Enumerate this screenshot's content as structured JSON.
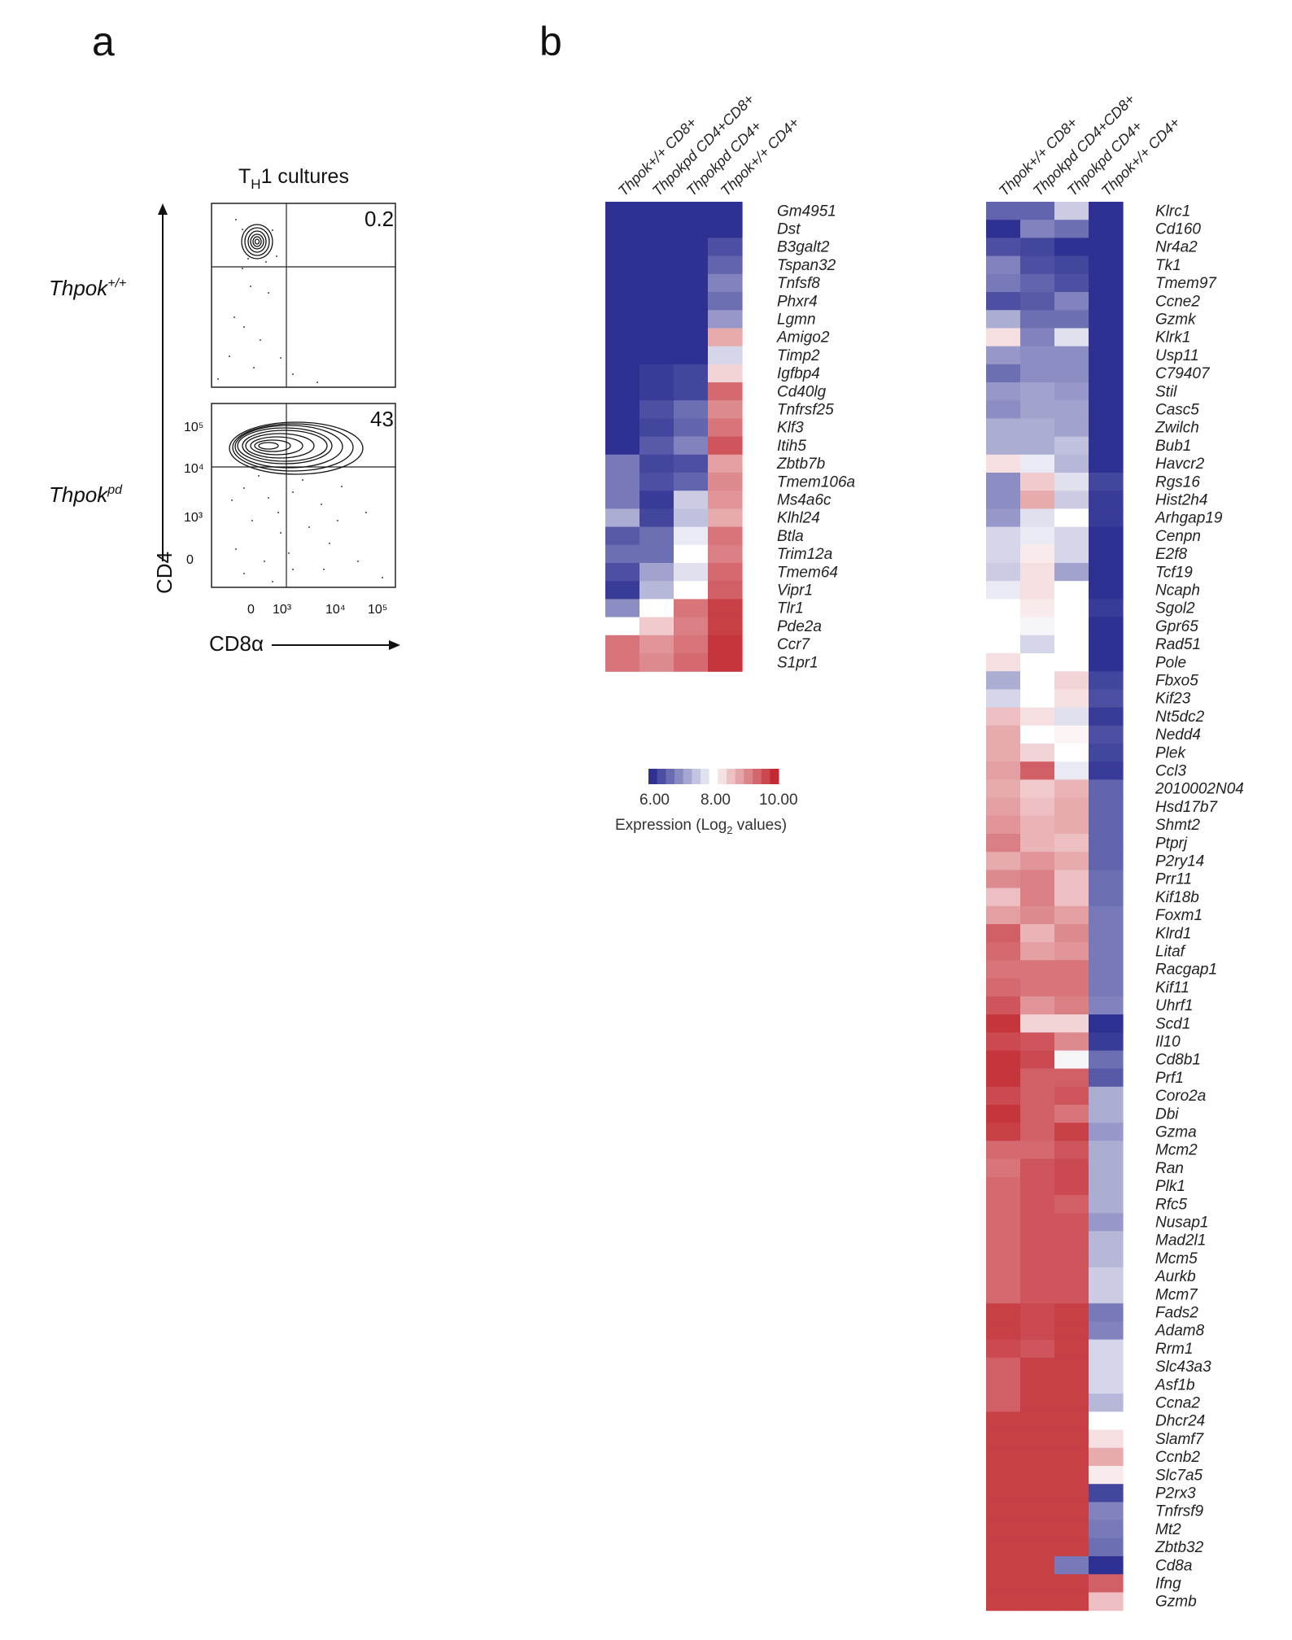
{
  "panels": {
    "a": {
      "letter": "a"
    },
    "b": {
      "letter": "b"
    }
  },
  "flow": {
    "title": "TH1 cultures",
    "title_parts": {
      "main": "T",
      "sub": "H",
      "rest": "1 cultures"
    },
    "rows": [
      {
        "genotype": "Thpok+/+",
        "genotype_base": "Thpok",
        "genotype_sup": "+/+",
        "percent": "0.2"
      },
      {
        "genotype": "Thpokpd",
        "genotype_base": "Thpok",
        "genotype_sup": "pd",
        "percent": "43"
      }
    ],
    "y_axis_label": "CD4",
    "x_axis_label": "CD8α",
    "y_ticks": [
      "10⁵",
      "10⁴",
      "10³",
      "0"
    ],
    "x_ticks": [
      "0",
      "10³",
      "10⁴",
      "10⁵"
    ]
  },
  "colors": {
    "low": "#2e3192",
    "mid": "#ffffff",
    "high": "#c22a32"
  },
  "chart_data": {
    "type": "heatmap",
    "value_scale": {
      "min": 6.0,
      "max": 10.0,
      "ticks": [
        "6.00",
        "8.00",
        "10.00"
      ],
      "label": "Expression (Log2 values)"
    },
    "columns": [
      {
        "name": "Thpok+/+ CD8+"
      },
      {
        "name": "Thpokpd CD4+CD8+"
      },
      {
        "name": "Thpokpd CD4+"
      },
      {
        "name": "Thpok+/+ CD4+"
      }
    ],
    "heatmaps": [
      {
        "name": "left",
        "genes": [
          "Gm4951",
          "Dst",
          "B3galt2",
          "Tspan32",
          "Tnfsf8",
          "Phxr4",
          "Lgmn",
          "Amigo2",
          "Timp2",
          "Igfbp4",
          "Cd40lg",
          "Tnfrsf25",
          "Klf3",
          "Itih5",
          "Zbtb7b",
          "Tmem106a",
          "Ms4a6c",
          "Klhl24",
          "Btla",
          "Trim12a",
          "Tmem64",
          "Vipr1",
          "Tlr1",
          "Pde2a",
          "Ccr7",
          "S1pr1"
        ],
        "values": [
          [
            6.0,
            6.0,
            6.0,
            6.0
          ],
          [
            6.0,
            6.0,
            6.0,
            6.0
          ],
          [
            6.0,
            6.0,
            6.0,
            6.3
          ],
          [
            6.0,
            6.0,
            6.0,
            6.5
          ],
          [
            6.0,
            6.0,
            6.0,
            6.8
          ],
          [
            6.0,
            6.0,
            6.0,
            6.6
          ],
          [
            6.0,
            6.0,
            6.0,
            7.0
          ],
          [
            6.0,
            6.0,
            6.0,
            8.8
          ],
          [
            6.0,
            6.0,
            6.0,
            7.6
          ],
          [
            6.0,
            6.1,
            6.2,
            8.4
          ],
          [
            6.0,
            6.1,
            6.2,
            9.4
          ],
          [
            6.0,
            6.3,
            6.6,
            9.1
          ],
          [
            6.0,
            6.2,
            6.5,
            9.3
          ],
          [
            6.0,
            6.4,
            6.8,
            9.6
          ],
          [
            6.7,
            6.2,
            6.3,
            8.9
          ],
          [
            6.7,
            6.3,
            6.5,
            9.1
          ],
          [
            6.7,
            6.1,
            7.5,
            9.0
          ],
          [
            7.2,
            6.2,
            7.4,
            8.8
          ],
          [
            6.4,
            6.6,
            7.8,
            9.3
          ],
          [
            6.6,
            6.6,
            8.0,
            9.2
          ],
          [
            6.3,
            7.1,
            7.7,
            9.4
          ],
          [
            6.1,
            7.3,
            8.0,
            9.5
          ],
          [
            6.9,
            8.0,
            9.3,
            9.8
          ],
          [
            8.0,
            8.5,
            9.2,
            9.8
          ],
          [
            9.3,
            9.0,
            9.3,
            9.9
          ],
          [
            9.3,
            9.1,
            9.4,
            9.9
          ]
        ]
      },
      {
        "name": "right",
        "genes": [
          "Klrc1",
          "Cd160",
          "Nr4a2",
          "Tk1",
          "Tmem97",
          "Ccne2",
          "Gzmk",
          "Klrk1",
          "Usp11",
          "C79407",
          "Stil",
          "Casc5",
          "Zwilch",
          "Bub1",
          "Havcr2",
          "Rgs16",
          "Hist2h4",
          "Arhgap19",
          "Cenpn",
          "E2f8",
          "Tcf19",
          "Ncaph",
          "Sgol2",
          "Gpr65",
          "Rad51",
          "Pole",
          "Fbxo5",
          "Kif23",
          "Nt5dc2",
          "Nedd4",
          "Plek",
          "Ccl3",
          "2010002N04",
          "Hsd17b7",
          "Shmt2",
          "Ptprj",
          "P2ry14",
          "Prr11",
          "Kif18b",
          "Foxm1",
          "Klrd1",
          "Litaf",
          "Racgap1",
          "Kif11",
          "Uhrf1",
          "Scd1",
          "Il10",
          "Cd8b1",
          "Prf1",
          "Coro2a",
          "Dbi",
          "Gzma",
          "Mcm2",
          "Ran",
          "Plk1",
          "Rfc5",
          "Nusap1",
          "Mad2l1",
          "Mcm5",
          "Aurkb",
          "Mcm7",
          "Fads2",
          "Adam8",
          "Rrm1",
          "Slc43a3",
          "Asf1b",
          "Ccna2",
          "Dhcr24",
          "Slamf7",
          "Ccnb2",
          "Slc7a5",
          "P2rx3",
          "Tnfrsf9",
          "Mt2",
          "Zbtb32",
          "Cd8a",
          "Ifng",
          "Gzmb"
        ],
        "values": [
          [
            6.5,
            6.5,
            7.5,
            6.0
          ],
          [
            6.0,
            6.8,
            6.6,
            6.0
          ],
          [
            6.3,
            6.2,
            6.0,
            6.0
          ],
          [
            6.8,
            6.3,
            6.2,
            6.0
          ],
          [
            6.7,
            6.5,
            6.3,
            6.0
          ],
          [
            6.3,
            6.4,
            6.8,
            6.0
          ],
          [
            7.2,
            6.6,
            6.6,
            6.0
          ],
          [
            8.3,
            6.8,
            7.7,
            6.0
          ],
          [
            7.0,
            6.9,
            6.9,
            6.0
          ],
          [
            6.6,
            6.9,
            6.9,
            6.0
          ],
          [
            7.0,
            7.1,
            7.0,
            6.0
          ],
          [
            6.9,
            7.1,
            7.1,
            6.0
          ],
          [
            7.2,
            7.2,
            7.1,
            6.0
          ],
          [
            7.2,
            7.2,
            7.4,
            6.0
          ],
          [
            8.3,
            7.8,
            7.3,
            6.0
          ],
          [
            6.9,
            8.5,
            7.7,
            6.2
          ],
          [
            6.9,
            8.8,
            7.5,
            6.1
          ],
          [
            7.0,
            7.7,
            8.0,
            6.1
          ],
          [
            7.6,
            7.8,
            7.6,
            6.0
          ],
          [
            7.6,
            8.2,
            7.6,
            6.0
          ],
          [
            7.5,
            8.3,
            7.1,
            6.0
          ],
          [
            7.8,
            8.3,
            8.0,
            6.0
          ],
          [
            8.0,
            8.2,
            8.0,
            6.1
          ],
          [
            8.0,
            7.9,
            8.0,
            6.0
          ],
          [
            8.0,
            7.6,
            8.0,
            6.0
          ],
          [
            8.3,
            8.0,
            8.0,
            6.0
          ],
          [
            7.2,
            8.0,
            8.4,
            6.2
          ],
          [
            7.6,
            8.0,
            8.3,
            6.3
          ],
          [
            8.6,
            8.3,
            7.7,
            6.1
          ],
          [
            8.8,
            8.0,
            8.1,
            6.3
          ],
          [
            8.8,
            8.4,
            8.0,
            6.2
          ],
          [
            8.9,
            9.5,
            7.8,
            6.1
          ],
          [
            8.8,
            8.5,
            8.7,
            6.5
          ],
          [
            8.9,
            8.6,
            8.8,
            6.5
          ],
          [
            9.0,
            8.7,
            8.8,
            6.5
          ],
          [
            9.2,
            8.7,
            8.6,
            6.5
          ],
          [
            8.8,
            9.0,
            8.8,
            6.5
          ],
          [
            9.1,
            9.2,
            8.6,
            6.6
          ],
          [
            8.6,
            9.2,
            8.6,
            6.6
          ],
          [
            8.9,
            9.1,
            8.9,
            6.7
          ],
          [
            9.5,
            8.7,
            9.1,
            6.7
          ],
          [
            9.4,
            8.9,
            9.0,
            6.7
          ],
          [
            9.3,
            9.3,
            9.3,
            6.7
          ],
          [
            9.4,
            9.3,
            9.3,
            6.7
          ],
          [
            9.6,
            9.0,
            9.2,
            6.8
          ],
          [
            9.9,
            8.4,
            8.4,
            6.0
          ],
          [
            9.7,
            9.6,
            9.1,
            6.1
          ],
          [
            9.9,
            9.7,
            7.9,
            6.6
          ],
          [
            9.9,
            9.5,
            9.5,
            6.4
          ],
          [
            9.7,
            9.5,
            9.6,
            7.2
          ],
          [
            9.9,
            9.5,
            9.3,
            7.2
          ],
          [
            9.8,
            9.5,
            9.8,
            7.0
          ],
          [
            9.4,
            9.4,
            9.6,
            7.2
          ],
          [
            9.3,
            9.6,
            9.7,
            7.2
          ],
          [
            9.4,
            9.6,
            9.7,
            7.2
          ],
          [
            9.4,
            9.6,
            9.5,
            7.2
          ],
          [
            9.4,
            9.6,
            9.6,
            7.0
          ],
          [
            9.4,
            9.6,
            9.6,
            7.3
          ],
          [
            9.4,
            9.6,
            9.6,
            7.3
          ],
          [
            9.4,
            9.6,
            9.6,
            7.5
          ],
          [
            9.4,
            9.6,
            9.6,
            7.5
          ],
          [
            9.8,
            9.7,
            9.8,
            6.7
          ],
          [
            9.8,
            9.7,
            9.8,
            6.8
          ],
          [
            9.7,
            9.6,
            9.8,
            7.6
          ],
          [
            9.5,
            9.8,
            9.8,
            7.6
          ],
          [
            9.5,
            9.8,
            9.8,
            7.6
          ],
          [
            9.5,
            9.8,
            9.8,
            7.3
          ],
          [
            9.8,
            9.8,
            9.8,
            8.0
          ],
          [
            9.8,
            9.8,
            9.8,
            8.3
          ],
          [
            9.8,
            9.8,
            9.8,
            8.8
          ],
          [
            9.8,
            9.8,
            9.8,
            8.2
          ],
          [
            9.8,
            9.8,
            9.8,
            6.2
          ],
          [
            9.8,
            9.8,
            9.8,
            6.8
          ],
          [
            9.8,
            9.8,
            9.8,
            6.7
          ],
          [
            9.8,
            9.8,
            9.8,
            6.6
          ],
          [
            9.8,
            9.8,
            6.7,
            6.0
          ],
          [
            9.8,
            9.8,
            9.8,
            9.5
          ],
          [
            9.8,
            9.8,
            9.8,
            8.6
          ]
        ]
      }
    ]
  }
}
